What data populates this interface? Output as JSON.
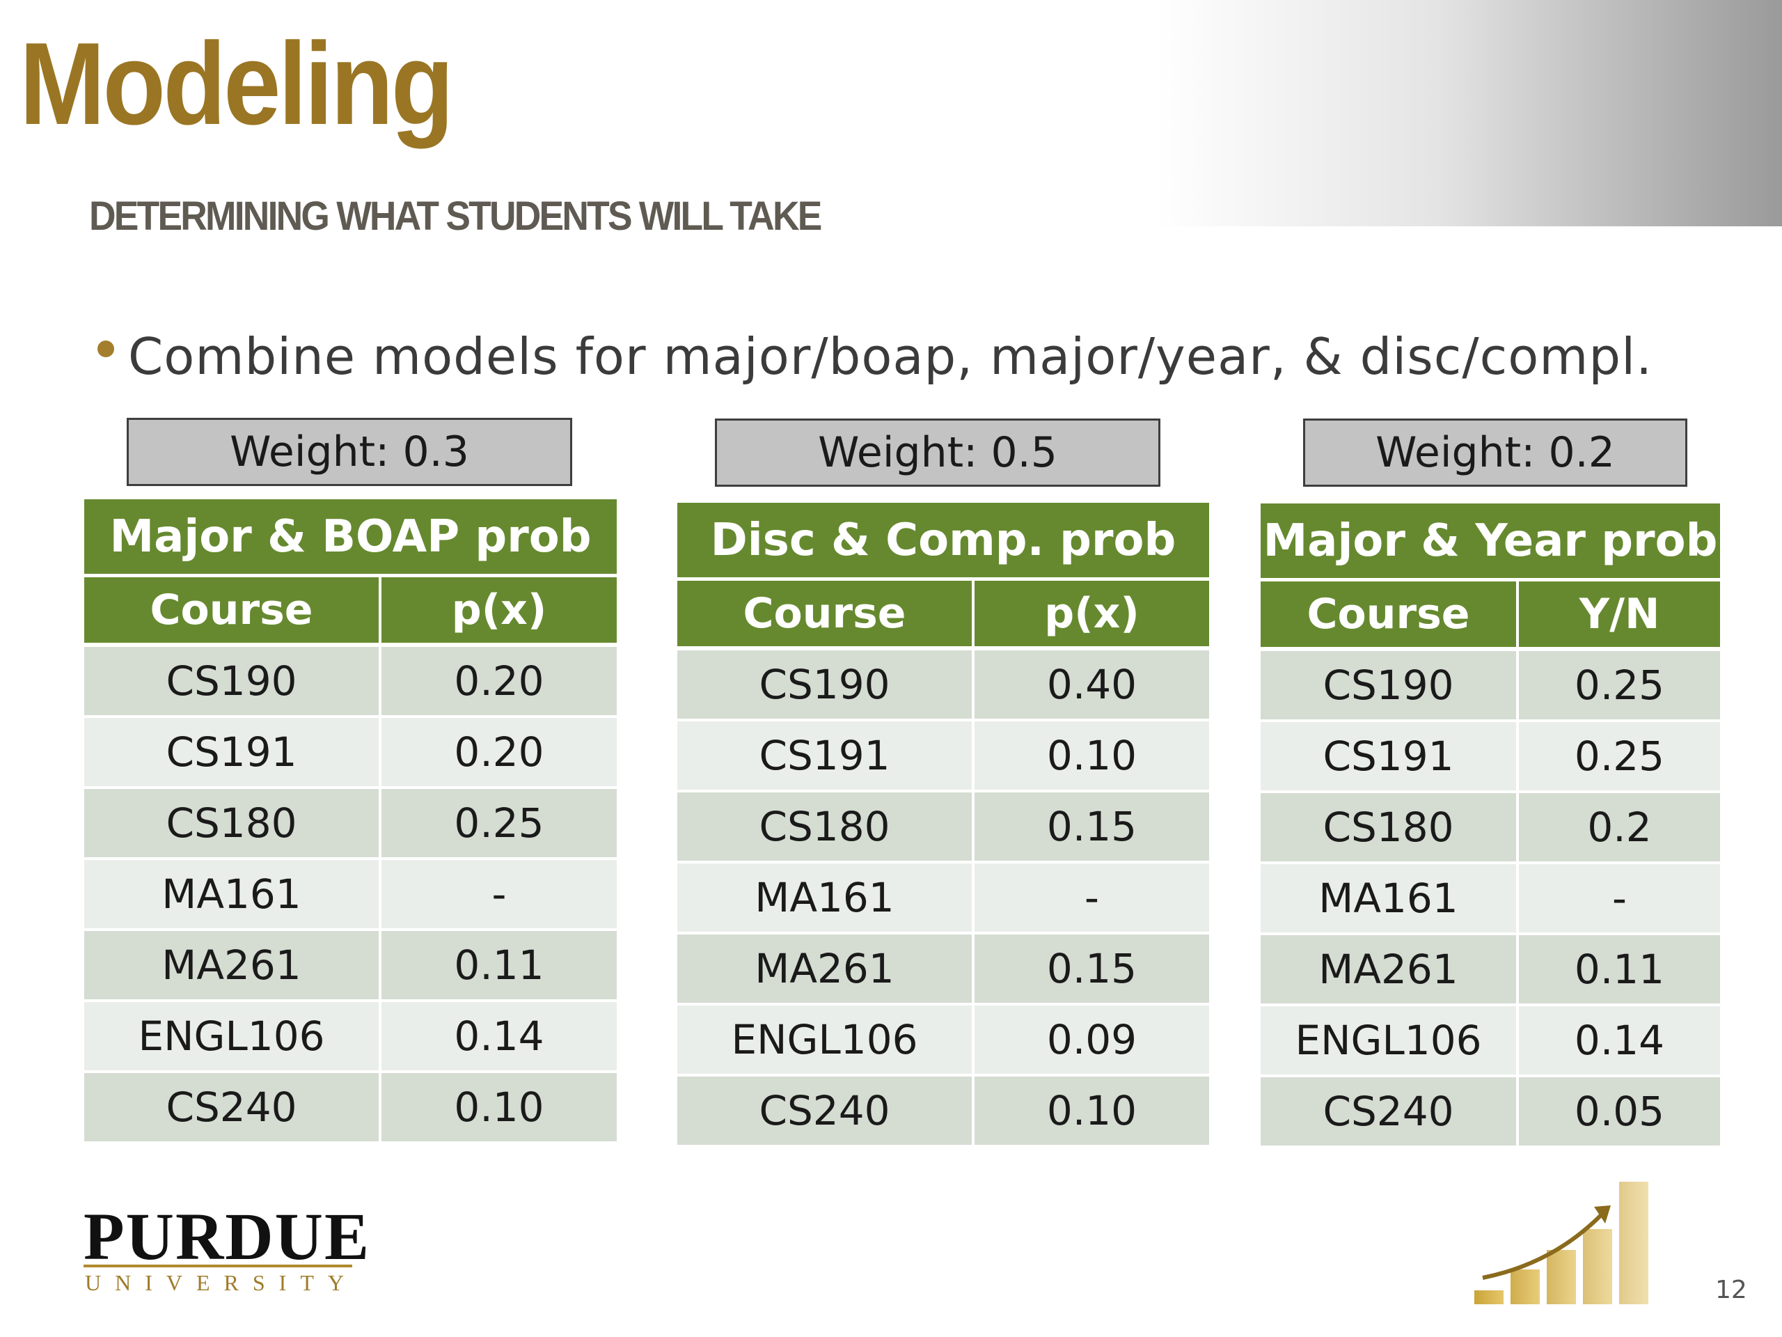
{
  "slide": {
    "title": "Modeling",
    "subtitle": "DETERMINING WHAT STUDENTS WILL TAKE",
    "bullet": "Combine models for major/boap, major/year, & disc/compl.",
    "page_number": "12"
  },
  "weights": [
    "Weight: 0.3",
    "Weight: 0.5",
    "Weight: 0.2"
  ],
  "tables": [
    {
      "title": "Major & BOAP prob",
      "headers": [
        "Course",
        "p(x)"
      ],
      "rows": [
        [
          "CS190",
          "0.20"
        ],
        [
          "CS191",
          "0.20"
        ],
        [
          "CS180",
          "0.25"
        ],
        [
          "MA161",
          "-"
        ],
        [
          "MA261",
          "0.11"
        ],
        [
          "ENGL106",
          "0.14"
        ],
        [
          "CS240",
          "0.10"
        ]
      ]
    },
    {
      "title": "Disc & Comp. prob",
      "headers": [
        "Course",
        "p(x)"
      ],
      "rows": [
        [
          "CS190",
          "0.40"
        ],
        [
          "CS191",
          "0.10"
        ],
        [
          "CS180",
          "0.15"
        ],
        [
          "MA161",
          "-"
        ],
        [
          "MA261",
          "0.15"
        ],
        [
          "ENGL106",
          "0.09"
        ],
        [
          "CS240",
          "0.10"
        ]
      ]
    },
    {
      "title": "Major & Year prob",
      "headers": [
        "Course",
        "Y/N"
      ],
      "rows": [
        [
          "CS190",
          "0.25"
        ],
        [
          "CS191",
          "0.25"
        ],
        [
          "CS180",
          "0.2"
        ],
        [
          "MA161",
          "-"
        ],
        [
          "MA261",
          "0.11"
        ],
        [
          "ENGL106",
          "0.14"
        ],
        [
          "CS240",
          "0.05"
        ]
      ]
    }
  ],
  "logo": {
    "word": "PURDUE",
    "sub": "UNIVERSITY"
  },
  "colors": {
    "accent_gold": "#9a7624",
    "table_green": "#66892f",
    "row_dark": "#d5dcd2",
    "row_light": "#eaeeea"
  }
}
